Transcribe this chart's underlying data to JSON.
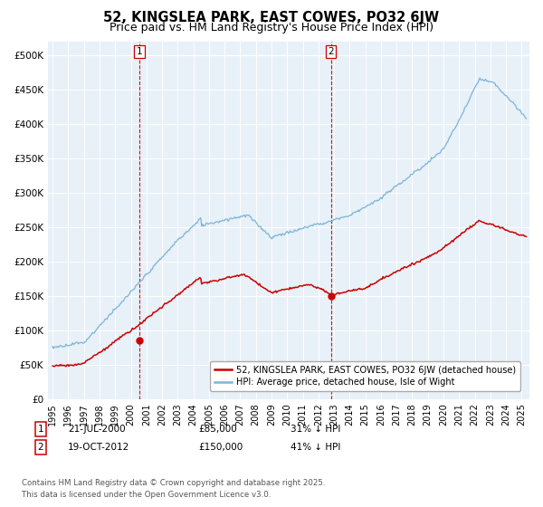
{
  "title": "52, KINGSLEA PARK, EAST COWES, PO32 6JW",
  "subtitle": "Price paid vs. HM Land Registry's House Price Index (HPI)",
  "ylabel_ticks": [
    "£0",
    "£50K",
    "£100K",
    "£150K",
    "£200K",
    "£250K",
    "£300K",
    "£350K",
    "£400K",
    "£450K",
    "£500K"
  ],
  "ytick_values": [
    0,
    50000,
    100000,
    150000,
    200000,
    250000,
    300000,
    350000,
    400000,
    450000,
    500000
  ],
  "ylim": [
    0,
    520000
  ],
  "xlim_start": 1994.7,
  "xlim_end": 2025.5,
  "purchase1_date": 2000.55,
  "purchase1_price": 85000,
  "purchase2_date": 2012.8,
  "purchase2_price": 150000,
  "hpi_color": "#7ab4d8",
  "price_color": "#cc0000",
  "vline_color": "#cc0000",
  "background_color": "#e8f0f8",
  "legend_label_red": "52, KINGSLEA PARK, EAST COWES, PO32 6JW (detached house)",
  "legend_label_blue": "HPI: Average price, detached house, Isle of Wight",
  "footer": "Contains HM Land Registry data © Crown copyright and database right 2025.\nThis data is licensed under the Open Government Licence v3.0.",
  "title_fontsize": 10.5,
  "subtitle_fontsize": 9,
  "annot1_date": "21-JUL-2000",
  "annot1_price": "£85,000",
  "annot1_hpi": "31% ↓ HPI",
  "annot2_date": "19-OCT-2012",
  "annot2_price": "£150,000",
  "annot2_hpi": "41% ↓ HPI"
}
